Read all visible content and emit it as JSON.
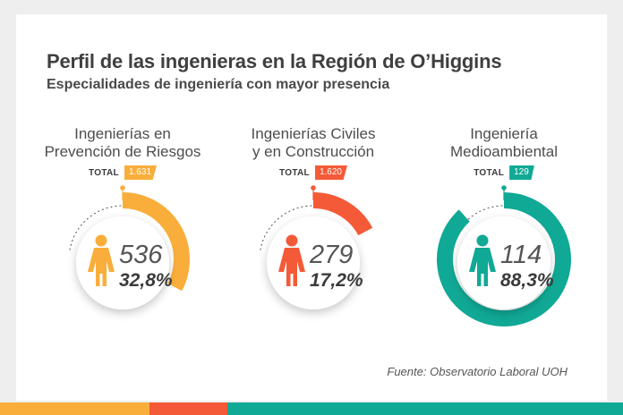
{
  "title": "Perfil de las ingenieras en la Región de O’Higgins",
  "subtitle": "Especialidades de ingeniería con mayor presencia",
  "total_label": "TOTAL",
  "source": "Fuente: Observatorio Laboral UOH",
  "colors": {
    "orange": "#f9ae3b",
    "red": "#f45a37",
    "teal": "#10a995"
  },
  "chart_data": {
    "type": "radial-progress",
    "items": [
      {
        "name_lines": [
          "Ingenierías en",
          "Prevención de Riesgos"
        ],
        "total": "1.631",
        "count": "536",
        "percent_label": "32,8%",
        "percent": 32.8,
        "color": "#f9ae3b"
      },
      {
        "name_lines": [
          "Ingenierías Civiles",
          "y en Construcción"
        ],
        "total": "1.620",
        "count": "279",
        "percent_label": "17,2%",
        "percent": 17.2,
        "color": "#f45a37"
      },
      {
        "name_lines": [
          "Ingeniería",
          "Medioambiental"
        ],
        "total": "129",
        "count": "114",
        "percent_label": "88,3%",
        "percent": 88.3,
        "color": "#10a995"
      }
    ]
  },
  "footer_colors": [
    "#f9ae3b",
    "#f45a37",
    "#10a995"
  ]
}
